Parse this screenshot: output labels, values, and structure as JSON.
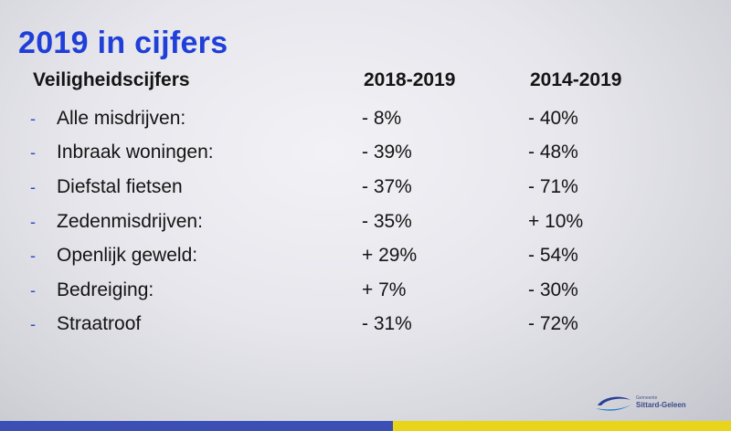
{
  "title": "2019 in cijfers",
  "headers": {
    "label": "Veiligheidscijfers",
    "col1": "2018-2019",
    "col2": "2014-2019"
  },
  "bullet": "-",
  "rows": [
    {
      "label": "Alle misdrijven:",
      "v1": "- 8%",
      "v2": "- 40%"
    },
    {
      "label": "Inbraak woningen:",
      "v1": "- 39%",
      "v2": "- 48%"
    },
    {
      "label": "Diefstal fietsen",
      "v1": "- 37%",
      "v2": "- 71%"
    },
    {
      "label": "Zedenmisdrijven:",
      "v1": "- 35%",
      "v2": "+ 10%"
    },
    {
      "label": "Openlijk geweld:",
      "v1": "+ 29%",
      "v2": "- 54%"
    },
    {
      "label": "Bedreiging:",
      "v1": "+ 7%",
      "v2": "- 30%"
    },
    {
      "label": "Straatroof",
      "v1": "- 31%",
      "v2": "- 72%"
    }
  ],
  "logo": {
    "small": "Gemeente",
    "name": "Sittard-Geleen"
  },
  "colors": {
    "title": "#1f3fd8",
    "band_blue": "#3b4fb4",
    "band_yellow": "#e8d419"
  }
}
